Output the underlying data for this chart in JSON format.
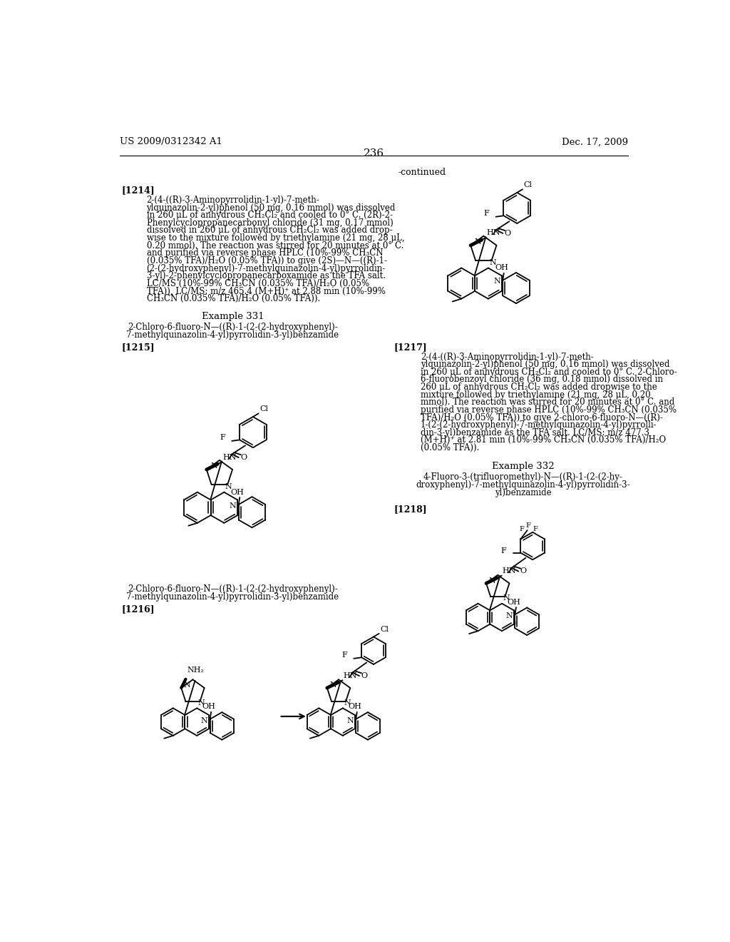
{
  "page_number": "236",
  "patent_number": "US 2009/0312342 A1",
  "patent_date": "Dec. 17, 2009",
  "background_color": "#ffffff",
  "p1214_lines": [
    "2-(4-((R)-3-Aminopyrrolidin-1-yl)-7-meth-",
    "ylquinazolin-2-yl)phenol (50 mg, 0.16 mmol) was dissolved",
    "in 260 μL of anhydrous CH₂Cl₂ and cooled to 0° C. (2R)-2-",
    "Phenylcyclopropanecarbonyl chloride (31 mg, 0.17 mmol)",
    "dissolved in 260 μL of anhydrous CH₂Cl₂ was added drop-",
    "wise to the mixture followed by triethylamine (21 mg, 28 μL,",
    "0.20 mmol). The reaction was stirred for 20 minutes at 0° C.",
    "and purified via reverse phase HPLC (10%-99% CH₃CN",
    "(0.035% TFA)/H₂O (0.05% TFA)) to give (2S)—N—((R)-1-",
    "(2-(2-hydroxyphenyl)-7-methylquinazolin-4-yl)pyrrolidin-",
    "3-yl)-2-phenylcyclopropanecarboxamide as the TFA salt.",
    "LC/MS (10%-99% CH₃CN (0.035% TFA)/H₂O (0.05%",
    "TFA)), LC/MS: m/z 465.4 (M+H)⁺ at 2.88 min (10%-99%",
    "CH₃CN (0.035% TFA)/H₂O (0.05% TFA))."
  ],
  "p1217_lines": [
    "2-(4-((R)-3-Aminopyrrolidin-1-yl)-7-meth-",
    "ylquinazolin-2-yl)phenol (50 mg, 0.16 mmol) was dissolved",
    "in 260 μL of anhydrous CH₂Cl₂ and cooled to 0° C. 2-Chloro-",
    "6-fluorobenzoyl chloride (36 mg, 0.18 mmol) dissolved in",
    "260 μL of anhydrous CH₂Cl₂ was added dropwise to the",
    "mixture followed by triethylamine (21 mg, 28 μL, 0.20",
    "mmol). The reaction was stirred for 20 minutes at 0° C. and",
    "purified via reverse phase HPLC (10%-99% CH₃CN (0.035%",
    "TFA)/H₂O (0.05% TFA)) to give 2-chloro-6-fluoro-N—((R)-",
    "1-(2-(2-hydroxyphenyl)-7-methylquinazolin-4-yl)pyrrolli-",
    "din-3-yl)benzamide as the TFA salt. LC/MS: m/z 477.3",
    "(M+H)⁺ at 2.81 min (10%-99% CH₃CN (0.035% TFA)/H₂O",
    "(0.05% TFA))."
  ],
  "ex332_title_lines": [
    "4-Fluoro-3-(trifluoromethyl)-N—((R)-1-(2-(2-hy-",
    "droxyphenyl)-7-methylquinazolin-4-yl)pyrrolidin-3-",
    "yl)benzamide"
  ]
}
